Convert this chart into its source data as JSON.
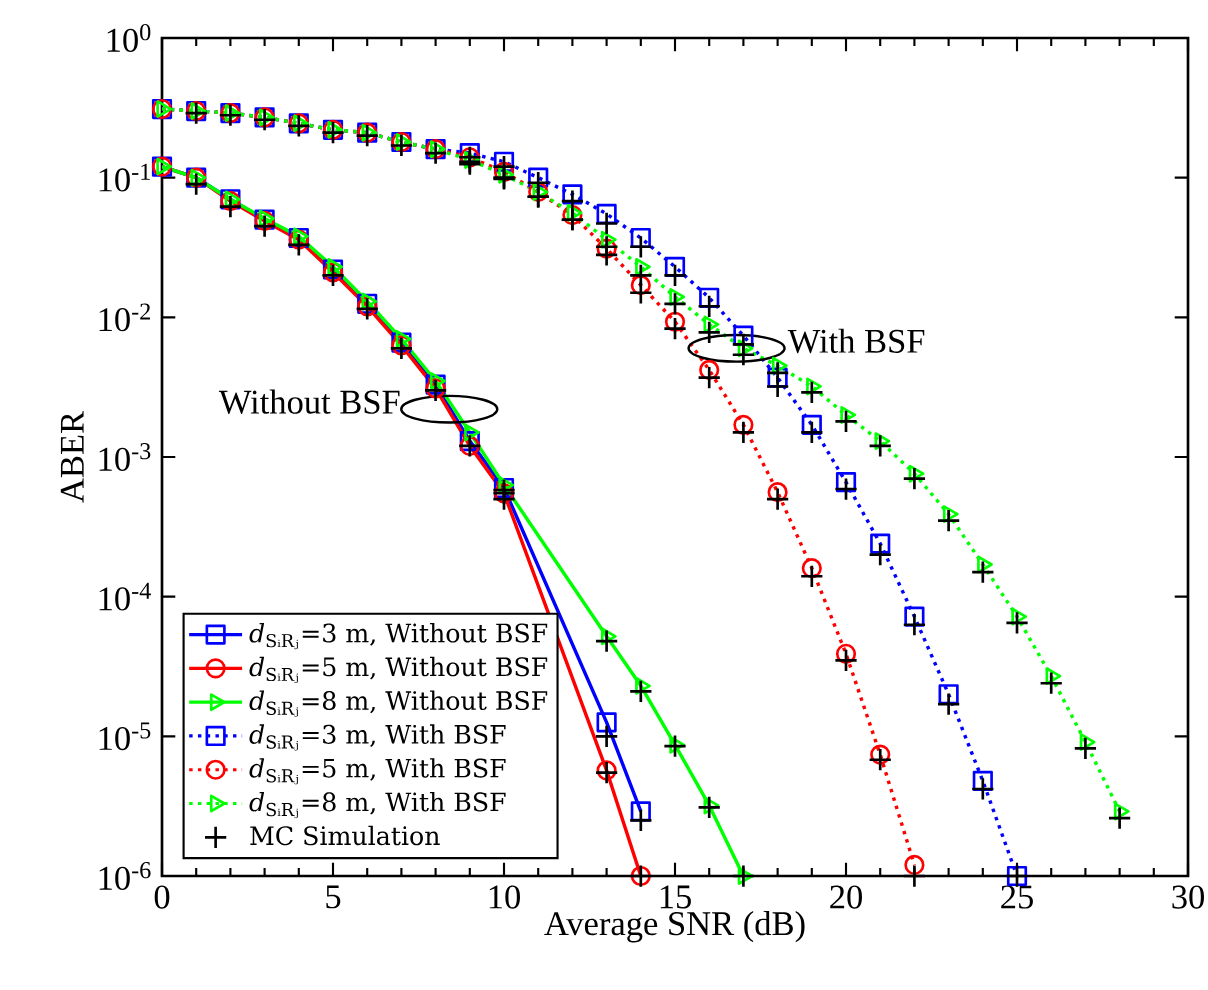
{
  "chart_data": {
    "type": "line",
    "xlabel": "Average SNR (dB)",
    "ylabel": "ABER",
    "log": "y",
    "xlim": [
      0,
      30
    ],
    "xticks": [
      0,
      5,
      10,
      15,
      20,
      25,
      30
    ],
    "ylim": [
      1e-06,
      1
    ],
    "yticks": [
      {
        "value": 1e-06,
        "label": "10$^{-6}$"
      },
      {
        "value": 1e-05,
        "label": "10$^{-5}$"
      },
      {
        "value": 0.0001,
        "label": "10$^{-4}$"
      },
      {
        "value": 0.001,
        "label": "10$^{-3}$"
      },
      {
        "value": 0.01,
        "label": "10$^{-2}$"
      },
      {
        "value": 0.1,
        "label": "10$^{-1}$"
      },
      {
        "value": 1,
        "label": "10$^{0}$"
      }
    ],
    "grid": false,
    "legend": "bottom left",
    "annotations": [
      {
        "text": "Without BSF",
        "x": 8.4,
        "y": 0.0022
      },
      {
        "text": "With BSF",
        "x": 16.8,
        "y": 0.006
      }
    ],
    "series": [
      {
        "name": "*d*$_{SᵢRⱼ}$=3 m, Without BSF",
        "color": "#0000ff",
        "marker": "square",
        "line_style": "solid",
        "x": [
          0,
          1,
          2,
          3,
          4,
          5,
          6,
          7,
          8,
          9,
          10,
          11,
          12,
          13,
          14
        ],
        "values": [
          0.12,
          0.1,
          0.07,
          0.05,
          0.037,
          0.022,
          0.0125,
          0.0066,
          0.0033,
          0.0013,
          0.0006,
          null,
          null,
          1.26e-05,
          2.9e-06
        ]
      },
      {
        "name": "*d*$_{SᵢRⱼ}$=5 m, Without BSF",
        "color": "#ff0000",
        "marker": "circle",
        "line_style": "solid",
        "x": [
          0,
          1,
          2,
          3,
          4,
          5,
          6,
          7,
          8,
          9,
          10,
          11,
          12,
          13,
          14
        ],
        "values": [
          0.12,
          0.1,
          0.068,
          0.049,
          0.036,
          0.021,
          0.012,
          0.0063,
          0.0031,
          0.0012,
          0.00055,
          null,
          null,
          5.7e-06,
          1e-06
        ]
      },
      {
        "name": "*d*$_{SᵢRⱼ}$=8 m, Without BSF",
        "color": "#00ff00",
        "marker": "triangle",
        "line_style": "solid",
        "x": [
          0,
          1,
          2,
          3,
          4,
          5,
          6,
          7,
          8,
          9,
          10,
          11,
          12,
          13,
          14,
          15,
          16,
          17
        ],
        "values": [
          0.12,
          0.1,
          0.07,
          0.051,
          0.038,
          0.023,
          0.013,
          0.007,
          0.0035,
          0.0015,
          0.00063,
          null,
          null,
          5.2e-05,
          2.3e-05,
          8.7e-06,
          3.2e-06,
          1e-06
        ]
      },
      {
        "name": "*d*$_{SᵢRⱼ}$=3 m, With BSF",
        "color": "#0000ff",
        "marker": "square",
        "line_style": "dotted",
        "x": [
          0,
          1,
          2,
          3,
          4,
          5,
          6,
          7,
          8,
          9,
          10,
          11,
          12,
          13,
          14,
          15,
          16,
          17,
          18,
          19,
          20,
          21,
          22,
          23,
          24,
          25
        ],
        "values": [
          0.31,
          0.3,
          0.29,
          0.27,
          0.245,
          0.22,
          0.21,
          0.18,
          0.16,
          0.15,
          0.13,
          0.1,
          0.076,
          0.055,
          0.037,
          0.023,
          0.0138,
          0.0074,
          0.0037,
          0.0017,
          0.00066,
          0.00024,
          7.2e-05,
          2e-05,
          4.8e-06,
          1e-06
        ]
      },
      {
        "name": "*d*$_{SᵢRⱼ}$=5 m, With BSF",
        "color": "#ff0000",
        "marker": "circle",
        "line_style": "dotted",
        "x": [
          0,
          1,
          2,
          3,
          4,
          5,
          6,
          7,
          8,
          9,
          10,
          11,
          12,
          13,
          14,
          15,
          16,
          17,
          18,
          19,
          20,
          21,
          22
        ],
        "values": [
          0.31,
          0.3,
          0.29,
          0.27,
          0.245,
          0.22,
          0.21,
          0.18,
          0.16,
          0.14,
          0.11,
          0.079,
          0.054,
          0.031,
          0.017,
          0.0093,
          0.0042,
          0.0017,
          0.00056,
          0.00016,
          3.9e-05,
          7.4e-06,
          1.2e-06
        ]
      },
      {
        "name": "*d*$_{SᵢRⱼ}$=8 m, With BSF",
        "color": "#00ff00",
        "marker": "triangle",
        "line_style": "dotted",
        "x": [
          0,
          1,
          2,
          3,
          4,
          5,
          6,
          7,
          8,
          9,
          10,
          11,
          12,
          13,
          14,
          15,
          16,
          17,
          18,
          19,
          20,
          21,
          22,
          23,
          24,
          25,
          26,
          27,
          28
        ],
        "values": [
          0.31,
          0.3,
          0.29,
          0.27,
          0.245,
          0.22,
          0.21,
          0.18,
          0.16,
          0.134,
          0.105,
          0.079,
          0.056,
          0.036,
          0.023,
          0.014,
          0.0089,
          0.006,
          0.0045,
          0.0032,
          0.002,
          0.0013,
          0.00076,
          0.00039,
          0.00017,
          7.2e-05,
          2.7e-05,
          9.1e-06,
          2.9e-06
        ]
      },
      {
        "name": "MC Simulation",
        "type": "scatter",
        "color": "#000000",
        "marker": "cross",
        "x": [
          1,
          2,
          3,
          4,
          5,
          6,
          7,
          8,
          9,
          10,
          11,
          12,
          13,
          14,
          10,
          11,
          12,
          13,
          14,
          10,
          11,
          12,
          13,
          14,
          15,
          16,
          17,
          1,
          2,
          3,
          4,
          5,
          6,
          7,
          8,
          9,
          10,
          11,
          12,
          13,
          14,
          15,
          16,
          17,
          18,
          19,
          20,
          21,
          22,
          23,
          24,
          25,
          9,
          10,
          11,
          12,
          13,
          14,
          15,
          16,
          17,
          18,
          19,
          20,
          21,
          22,
          9,
          10,
          11,
          12,
          13,
          14,
          15,
          16,
          17,
          18,
          19,
          20,
          21,
          22,
          23,
          24,
          25,
          26,
          27,
          28
        ],
        "values": [
          0.09,
          0.062,
          0.045,
          0.033,
          0.02,
          0.0115,
          0.006,
          0.003,
          0.0012,
          0.00055,
          null,
          null,
          1e-05,
          2.5e-06,
          0.0005,
          null,
          null,
          5.5e-06,
          1e-06,
          0.00058,
          null,
          null,
          4.8e-05,
          2.1e-05,
          8.5e-06,
          3.1e-06,
          1e-06,
          0.29,
          0.28,
          0.26,
          0.235,
          0.21,
          0.2,
          0.17,
          0.15,
          0.14,
          0.12,
          0.092,
          0.068,
          0.047,
          0.032,
          0.02,
          0.012,
          0.0064,
          0.0032,
          0.0015,
          0.00059,
          0.0002,
          6.3e-05,
          1.7e-05,
          4.2e-06,
          1e-06,
          0.13,
          0.1,
          0.073,
          0.05,
          0.028,
          0.015,
          0.0083,
          0.0037,
          0.0015,
          0.0005,
          0.00014,
          3.5e-05,
          6.8e-06,
          1e-06,
          0.125,
          0.098,
          0.073,
          0.05,
          0.032,
          0.02,
          0.0125,
          0.0078,
          0.0054,
          0.004,
          0.0029,
          0.0018,
          0.0012,
          0.0007,
          0.00035,
          0.00015,
          6.5e-05,
          2.4e-05,
          8.2e-06,
          2.6e-06
        ]
      }
    ]
  }
}
